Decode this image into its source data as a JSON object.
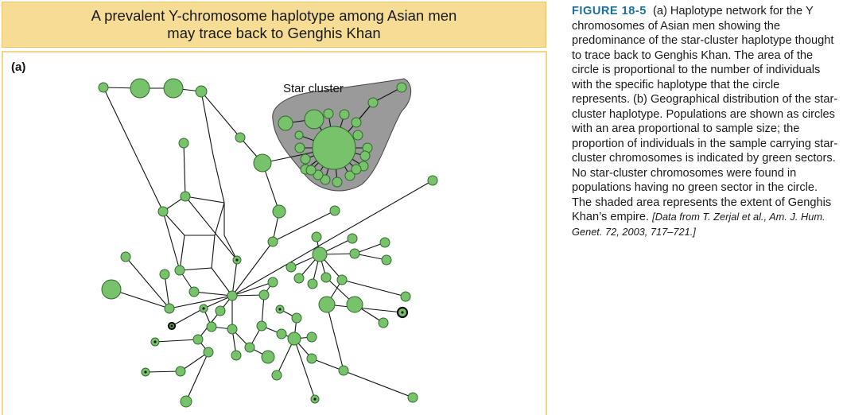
{
  "header": {
    "line1": "A prevalent Y-chromosome haplotype among Asian men",
    "line2": "may trace back to Genghis Khan"
  },
  "panel": {
    "label": "(a)",
    "star_label": "Star cluster"
  },
  "caption": {
    "figure_label": "FIGURE 18-5",
    "body": "(a) Haplotype network for the Y chromosomes of Asian men showing the predominance of the star-cluster haplotype thought to trace back to Genghis Khan. The area of the circle is proportional to the number of individuals with the specific haplotype that the circle represents. (b) Geographical distribution of the star-cluster haplotype. Populations are shown as circles with an area proportional to sample size; the proportion of individuals in the sample carrying star-cluster chromosomes is indicated by green sectors. No star-cluster chromosomes were found in populations having no green sector in the circle. The shaded area represents the extent of Genghis Khan’s empire.",
    "source_prefix": "[Data from T. Zerjal et al.,",
    "source_journal": "Am. J. Hum. Genet.",
    "source_suffix": "72, 2003, 717–721.]"
  },
  "colors": {
    "node_fill": "#79c26c",
    "node_stroke": "#2f6b2c",
    "cluster_fill": "#9a9a9a",
    "title_bg": "#f6dc95",
    "figure_label": "#1d6fa0"
  }
}
